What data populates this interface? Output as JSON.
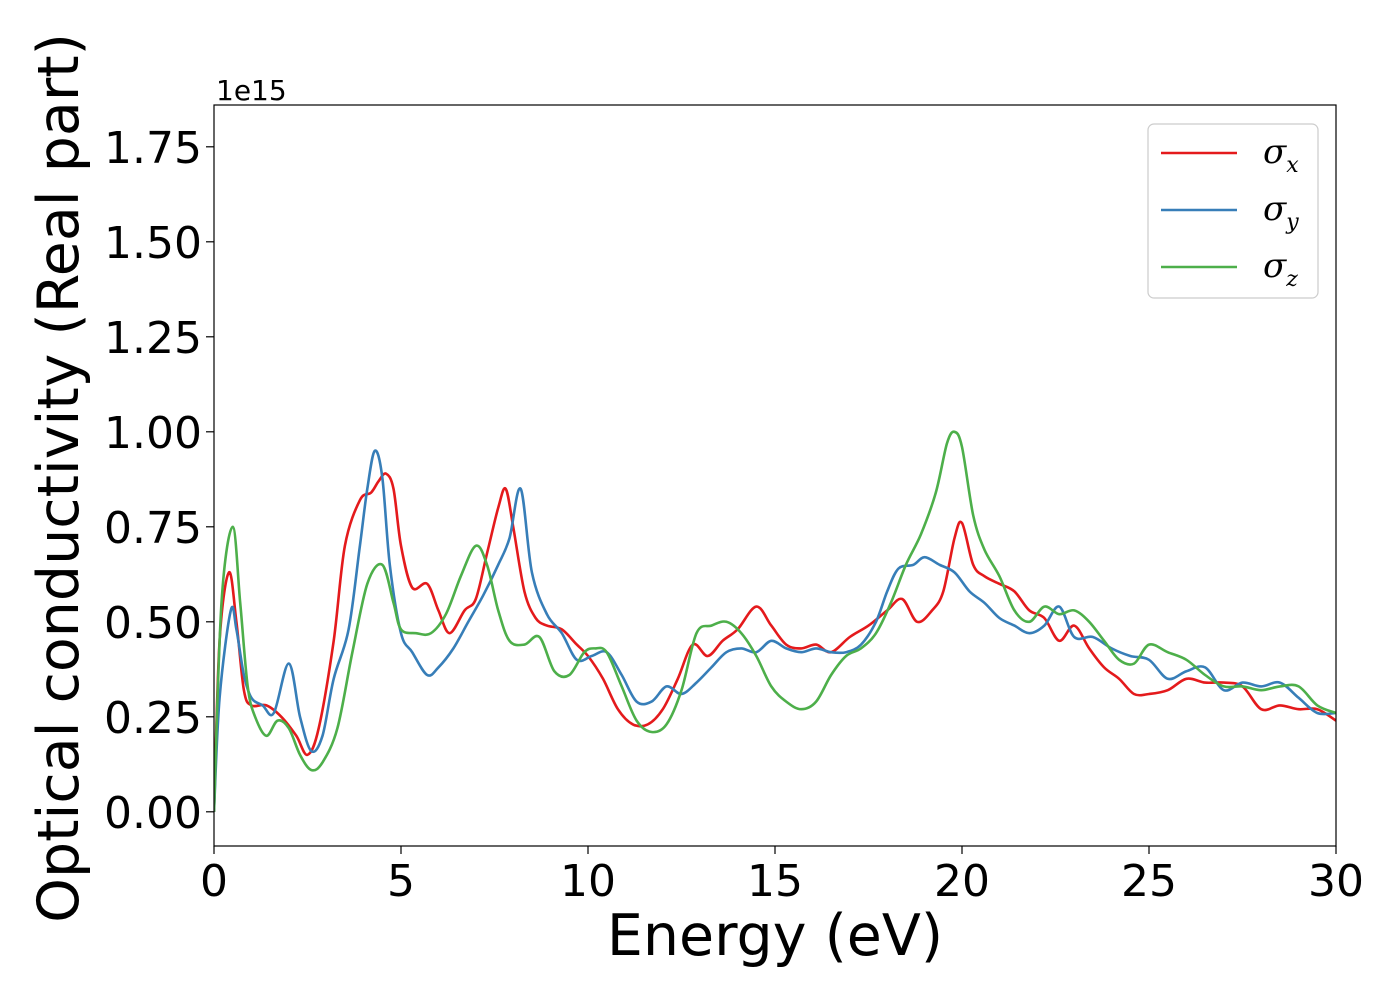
{
  "chart_data": {
    "type": "line",
    "xlabel": "Energy (eV)",
    "ylabel": "Optical conductivity (Real part)",
    "y_offset_label": "1e15",
    "xlim": [
      0,
      30
    ],
    "ylim": [
      -0.09,
      1.86
    ],
    "x_ticks": [
      0,
      5,
      10,
      15,
      20,
      25,
      30
    ],
    "x_tick_labels": [
      "0",
      "5",
      "10",
      "15",
      "20",
      "25",
      "30"
    ],
    "y_ticks": [
      0.0,
      0.25,
      0.5,
      0.75,
      1.0,
      1.25,
      1.5,
      1.75
    ],
    "y_tick_labels": [
      "0.00",
      "0.25",
      "0.50",
      "0.75",
      "1.00",
      "1.25",
      "1.50",
      "1.75"
    ],
    "grid": false,
    "legend_position": "top-right",
    "series": [
      {
        "name": "σx",
        "symbol": "σ",
        "subscript": "x",
        "color": "#e41a1c",
        "x": [
          0,
          0.15,
          0.4,
          0.6,
          0.8,
          1.0,
          1.4,
          1.8,
          2.2,
          2.5,
          2.8,
          3.2,
          3.5,
          3.9,
          4.2,
          4.4,
          4.6,
          4.8,
          5.0,
          5.3,
          5.7,
          6.0,
          6.3,
          6.7,
          7.0,
          7.3,
          7.6,
          7.8,
          8.0,
          8.3,
          8.6,
          8.9,
          9.3,
          9.7,
          10.0,
          10.4,
          10.8,
          11.2,
          11.6,
          12.0,
          12.4,
          12.8,
          13.2,
          13.6,
          14.0,
          14.5,
          14.9,
          15.3,
          15.7,
          16.1,
          16.5,
          17.0,
          17.5,
          18.0,
          18.4,
          18.8,
          19.2,
          19.5,
          19.8,
          20.0,
          20.3,
          20.6,
          21.0,
          21.4,
          21.8,
          22.2,
          22.6,
          23.0,
          23.4,
          23.8,
          24.2,
          24.6,
          25.0,
          25.5,
          26.0,
          26.5,
          27.0,
          27.5,
          28.0,
          28.5,
          29.0,
          29.5,
          30.0
        ],
        "y": [
          0.0,
          0.45,
          0.63,
          0.5,
          0.32,
          0.28,
          0.28,
          0.25,
          0.2,
          0.15,
          0.22,
          0.45,
          0.7,
          0.82,
          0.84,
          0.87,
          0.89,
          0.85,
          0.7,
          0.59,
          0.6,
          0.53,
          0.47,
          0.53,
          0.56,
          0.68,
          0.8,
          0.85,
          0.75,
          0.58,
          0.51,
          0.49,
          0.48,
          0.44,
          0.41,
          0.35,
          0.27,
          0.23,
          0.23,
          0.27,
          0.35,
          0.44,
          0.41,
          0.45,
          0.48,
          0.54,
          0.49,
          0.44,
          0.43,
          0.44,
          0.42,
          0.46,
          0.49,
          0.53,
          0.56,
          0.5,
          0.53,
          0.58,
          0.72,
          0.76,
          0.65,
          0.62,
          0.6,
          0.58,
          0.53,
          0.51,
          0.45,
          0.49,
          0.43,
          0.38,
          0.35,
          0.31,
          0.31,
          0.32,
          0.35,
          0.34,
          0.34,
          0.33,
          0.27,
          0.28,
          0.27,
          0.27,
          0.24
        ]
      },
      {
        "name": "σy",
        "symbol": "σ",
        "subscript": "y",
        "color": "#377eb8",
        "x": [
          0,
          0.15,
          0.45,
          0.6,
          0.8,
          1.0,
          1.3,
          1.6,
          2.0,
          2.3,
          2.6,
          2.9,
          3.2,
          3.6,
          3.9,
          4.1,
          4.3,
          4.5,
          4.7,
          5.0,
          5.3,
          5.7,
          6.0,
          6.4,
          6.8,
          7.2,
          7.6,
          7.9,
          8.2,
          8.5,
          8.9,
          9.3,
          9.7,
          10.1,
          10.5,
          10.9,
          11.3,
          11.7,
          12.1,
          12.5,
          12.9,
          13.3,
          13.7,
          14.1,
          14.5,
          14.9,
          15.3,
          15.7,
          16.1,
          16.5,
          16.9,
          17.3,
          17.7,
          18.0,
          18.3,
          18.7,
          19.0,
          19.4,
          19.8,
          20.2,
          20.6,
          21.0,
          21.4,
          21.8,
          22.2,
          22.6,
          23.0,
          23.5,
          24.0,
          24.5,
          25.0,
          25.5,
          26.0,
          26.5,
          27.0,
          27.5,
          28.0,
          28.5,
          29.0,
          29.5,
          30.0
        ],
        "y": [
          0.0,
          0.3,
          0.53,
          0.48,
          0.36,
          0.3,
          0.28,
          0.26,
          0.39,
          0.25,
          0.16,
          0.2,
          0.35,
          0.48,
          0.7,
          0.85,
          0.95,
          0.88,
          0.65,
          0.47,
          0.42,
          0.36,
          0.38,
          0.43,
          0.5,
          0.57,
          0.65,
          0.72,
          0.85,
          0.63,
          0.52,
          0.47,
          0.4,
          0.41,
          0.42,
          0.36,
          0.29,
          0.29,
          0.33,
          0.31,
          0.34,
          0.38,
          0.42,
          0.43,
          0.42,
          0.45,
          0.43,
          0.42,
          0.43,
          0.42,
          0.42,
          0.44,
          0.5,
          0.58,
          0.64,
          0.65,
          0.67,
          0.65,
          0.63,
          0.58,
          0.55,
          0.51,
          0.49,
          0.47,
          0.49,
          0.54,
          0.46,
          0.46,
          0.43,
          0.41,
          0.4,
          0.35,
          0.37,
          0.38,
          0.32,
          0.34,
          0.33,
          0.34,
          0.3,
          0.26,
          0.26
        ]
      },
      {
        "name": "σz",
        "symbol": "σ",
        "subscript": "z",
        "color": "#4daf4a",
        "x": [
          0,
          0.2,
          0.5,
          0.7,
          0.9,
          1.1,
          1.4,
          1.7,
          2.0,
          2.3,
          2.6,
          2.9,
          3.3,
          3.7,
          4.1,
          4.5,
          4.8,
          5.0,
          5.4,
          5.8,
          6.2,
          6.6,
          7.0,
          7.3,
          7.6,
          7.9,
          8.3,
          8.7,
          9.1,
          9.5,
          9.9,
          10.2,
          10.5,
          10.9,
          11.3,
          11.7,
          12.1,
          12.5,
          12.9,
          13.3,
          13.7,
          14.1,
          14.5,
          14.9,
          15.3,
          15.7,
          16.1,
          16.5,
          16.9,
          17.3,
          17.7,
          18.1,
          18.5,
          18.9,
          19.3,
          19.6,
          19.8,
          20.0,
          20.3,
          20.6,
          21.0,
          21.4,
          21.8,
          22.2,
          22.6,
          23.0,
          23.4,
          23.8,
          24.2,
          24.6,
          25.0,
          25.5,
          26.0,
          26.5,
          27.0,
          27.5,
          28.0,
          28.5,
          29.0,
          29.5,
          30.0
        ],
        "y": [
          0.0,
          0.55,
          0.75,
          0.55,
          0.33,
          0.25,
          0.2,
          0.24,
          0.22,
          0.15,
          0.11,
          0.13,
          0.22,
          0.42,
          0.6,
          0.65,
          0.55,
          0.48,
          0.47,
          0.47,
          0.52,
          0.62,
          0.7,
          0.65,
          0.53,
          0.45,
          0.44,
          0.46,
          0.37,
          0.36,
          0.42,
          0.43,
          0.42,
          0.33,
          0.24,
          0.21,
          0.23,
          0.32,
          0.47,
          0.49,
          0.5,
          0.47,
          0.41,
          0.33,
          0.29,
          0.27,
          0.29,
          0.36,
          0.41,
          0.43,
          0.47,
          0.55,
          0.65,
          0.73,
          0.84,
          0.97,
          1.0,
          0.96,
          0.78,
          0.69,
          0.62,
          0.53,
          0.5,
          0.54,
          0.52,
          0.53,
          0.5,
          0.45,
          0.4,
          0.39,
          0.44,
          0.42,
          0.4,
          0.36,
          0.33,
          0.33,
          0.32,
          0.33,
          0.33,
          0.28,
          0.26
        ]
      }
    ]
  }
}
